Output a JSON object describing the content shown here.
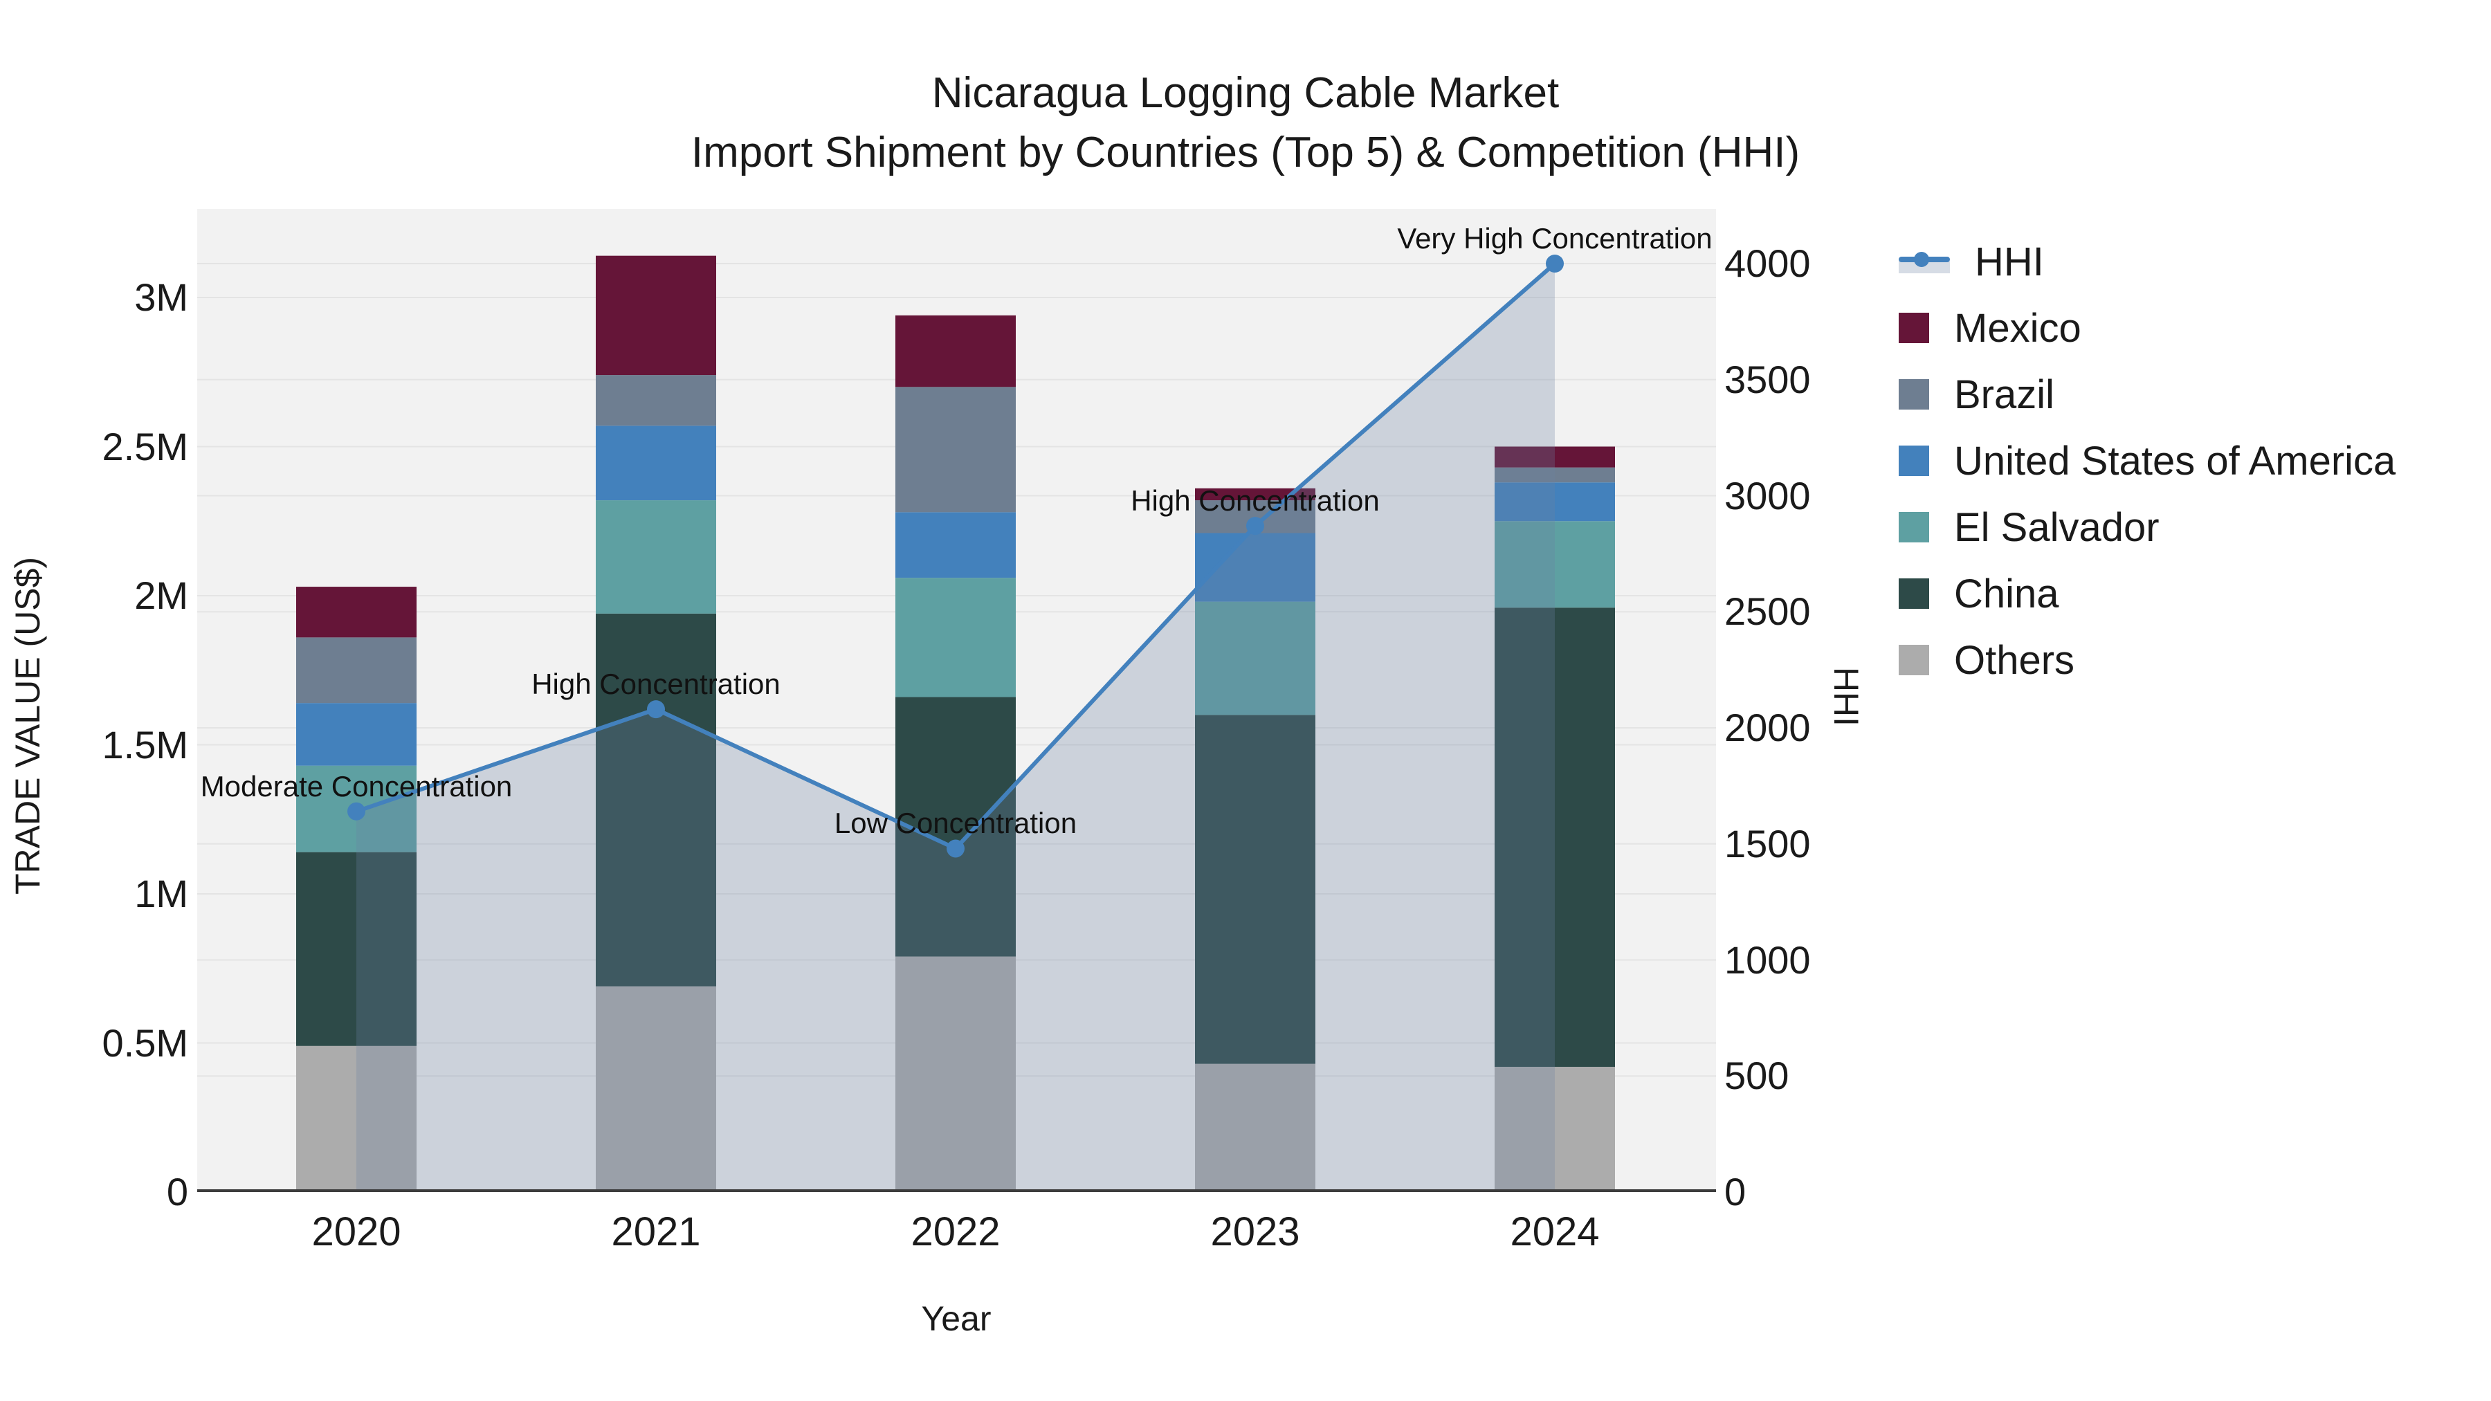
{
  "title": {
    "line1": "Nicaragua Logging Cable Market",
    "line2": "Import Shipment by Countries (Top 5) & Competition (HHI)"
  },
  "colors": {
    "plot_bg": "#F2F2F2",
    "grid": "#E4E4E4",
    "axis_line": "#3C3C3C",
    "text": "#1A1A1A"
  },
  "chart_data": {
    "type": "bar+line",
    "title": "Nicaragua Logging Cable Market Import Shipment by Countries (Top 5) & Competition (HHI)",
    "categories": [
      "2020",
      "2021",
      "2022",
      "2023",
      "2024"
    ],
    "stacked": true,
    "series": [
      {
        "name": "Others",
        "color": "#ACACAC",
        "values": [
          490000,
          690000,
          790000,
          430000,
          420000
        ]
      },
      {
        "name": "China",
        "color": "#2D4A48",
        "values": [
          650000,
          1250000,
          870000,
          1170000,
          1540000
        ]
      },
      {
        "name": "El Salvador",
        "color": "#5EA0A2",
        "values": [
          290000,
          380000,
          400000,
          380000,
          290000
        ]
      },
      {
        "name": "United States of America",
        "color": "#4381BC",
        "values": [
          210000,
          250000,
          220000,
          230000,
          130000
        ]
      },
      {
        "name": "Brazil",
        "color": "#6E7E91",
        "values": [
          220000,
          170000,
          420000,
          110000,
          50000
        ]
      },
      {
        "name": "Mexico",
        "color": "#651538",
        "values": [
          170000,
          400000,
          240000,
          40000,
          70000
        ]
      }
    ],
    "hhi": {
      "name": "HHI",
      "color": "#4381BD",
      "fill": "rgba(108,130,162,0.28)",
      "values": [
        1640,
        2080,
        1480,
        2870,
        4000
      ],
      "annotations": [
        "Moderate Concentration",
        "High Concentration",
        "Low Concentration",
        "High Concentration",
        "Very High Concentration"
      ]
    },
    "axes": {
      "left": {
        "title": "TRADE VALUE (US$)",
        "range": [
          0,
          3297000
        ],
        "ticks": [
          {
            "label": "0",
            "value": 0
          },
          {
            "label": "0.5M",
            "value": 500000
          },
          {
            "label": "1M",
            "value": 1000000
          },
          {
            "label": "1.5M",
            "value": 1500000
          },
          {
            "label": "2M",
            "value": 2000000
          },
          {
            "label": "2.5M",
            "value": 2500000
          },
          {
            "label": "3M",
            "value": 3000000
          }
        ]
      },
      "right": {
        "title": "HHI",
        "range": [
          0,
          4238
        ],
        "ticks": [
          {
            "label": "0",
            "value": 0
          },
          {
            "label": "500",
            "value": 500
          },
          {
            "label": "1000",
            "value": 1000
          },
          {
            "label": "1500",
            "value": 1500
          },
          {
            "label": "2000",
            "value": 2000
          },
          {
            "label": "2500",
            "value": 2500
          },
          {
            "label": "3000",
            "value": 3000
          },
          {
            "label": "3500",
            "value": 3500
          },
          {
            "label": "4000",
            "value": 4000
          }
        ]
      },
      "x": {
        "title": "Year",
        "ticks": [
          "2020",
          "2021",
          "2022",
          "2023",
          "2024"
        ]
      }
    },
    "legend": [
      {
        "label": "HHI",
        "type": "line",
        "color": "#4381BD"
      },
      {
        "label": "Mexico",
        "type": "swatch",
        "color": "#651538"
      },
      {
        "label": "Brazil",
        "type": "swatch",
        "color": "#6E7E91"
      },
      {
        "label": "United States of America",
        "type": "swatch",
        "color": "#4381BC"
      },
      {
        "label": "El Salvador",
        "type": "swatch",
        "color": "#5EA0A2"
      },
      {
        "label": "China",
        "type": "swatch",
        "color": "#2D4A48"
      },
      {
        "label": "Others",
        "type": "swatch",
        "color": "#ACACAC"
      }
    ]
  }
}
